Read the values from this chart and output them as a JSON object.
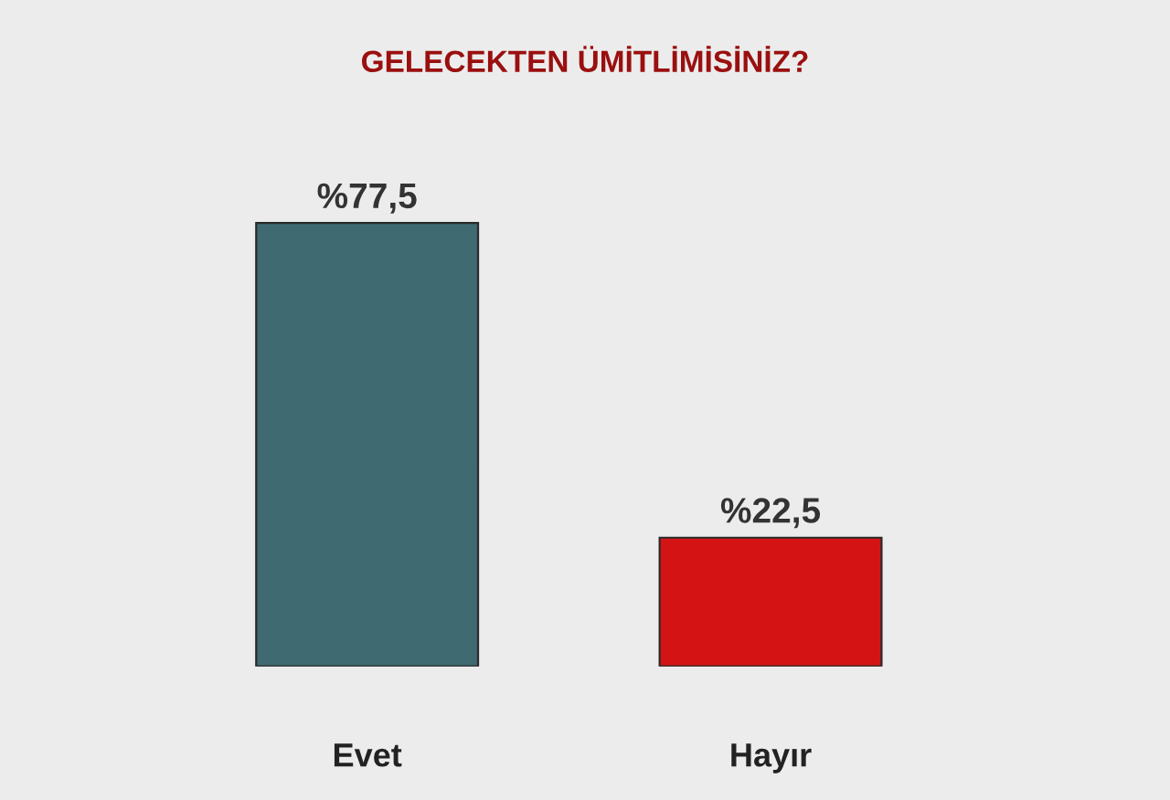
{
  "chart_data": {
    "type": "bar",
    "title": "GELECEKTEN ÜMİTLİMİSİNİZ?",
    "categories": [
      "Evet",
      "Hayır"
    ],
    "values": [
      77.5,
      22.5
    ],
    "colors": [
      "#3f6a72",
      "#d41414"
    ],
    "value_labels": [
      "%77,5",
      "%22,5"
    ]
  }
}
